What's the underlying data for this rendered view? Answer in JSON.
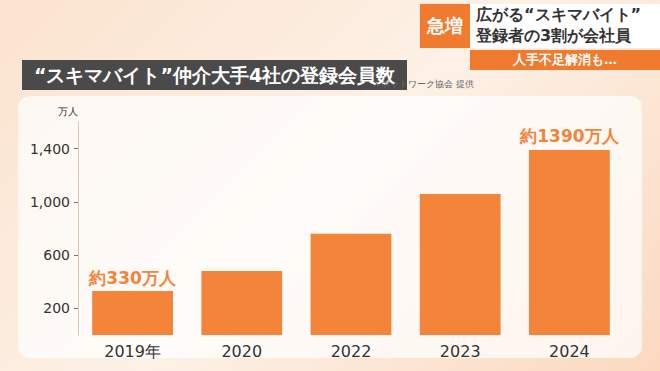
{
  "chart_data": {
    "type": "bar",
    "title": "“スキマバイト”仲介大手4社の登録会員数",
    "subtitle": "スポットワーク協会 提供",
    "headline": {
      "badge": "急増",
      "lines": [
        "広がる“スキマバイト”",
        "登録者の3割が会社員"
      ],
      "banner": "人手不足解消も…"
    },
    "y_label": "万人",
    "categories": [
      "2019年",
      "2020",
      "2022",
      "2023",
      "2024"
    ],
    "values": [
      330,
      480,
      760,
      1060,
      1390
    ],
    "value_labels": [
      "約330万人",
      null,
      null,
      null,
      "約1390万人"
    ],
    "data_labels": true,
    "color": "#f4843a",
    "ylim": [
      0,
      1600
    ],
    "yticks": [
      200,
      600,
      1000,
      1400
    ],
    "grid": false
  }
}
